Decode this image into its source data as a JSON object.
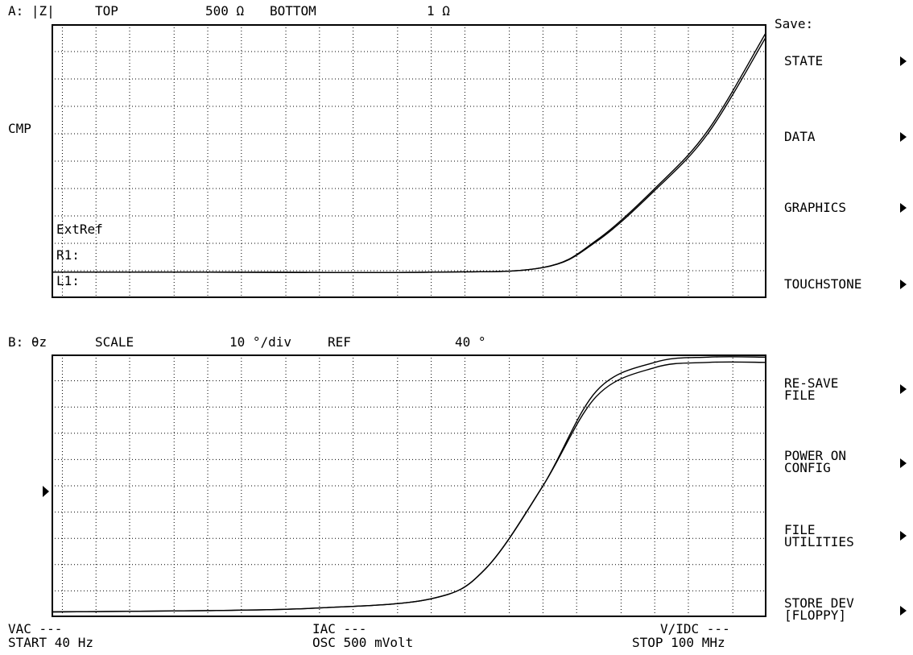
{
  "trace_a": {
    "label": "A: |Z|",
    "top_label": "TOP",
    "top_value": "500 Ω",
    "bottom_label": "BOTTOM",
    "bottom_value": "1 Ω",
    "cmp": "CMP",
    "ext_ref": "ExtRef",
    "r1": "R1:",
    "l1": "L1:"
  },
  "trace_b": {
    "label": "B: θz",
    "scale_label": "SCALE",
    "scale_value": "10 °/div",
    "ref_label": "REF",
    "ref_value": "40 °"
  },
  "footer": {
    "vac": "VAC ---",
    "start": "START 40 Hz",
    "iac": "IAC ---",
    "osc": "OSC 500 mVolt",
    "vidc": "V/IDC ---",
    "stop": "STOP 100 MHz"
  },
  "softkeys": {
    "title": "Save:",
    "items": [
      {
        "label": "STATE"
      },
      {
        "label": "DATA"
      },
      {
        "label": "GRAPHICS"
      },
      {
        "label": "TOUCHSTONE"
      },
      {
        "label": "RE-SAVE\nFILE"
      },
      {
        "label": "POWER ON\nCONFIG"
      },
      {
        "label": "FILE\nUTILITIES"
      },
      {
        "label": "STORE DEV\n[FLOPPY]"
      }
    ]
  },
  "icons": {
    "softkey_arrow": "right-triangle-icon",
    "reference_marker": "ref-marker-icon"
  },
  "chart_data": [
    {
      "type": "line",
      "title": "A: |Z|",
      "x_scale": "log",
      "x_start_hz": 40,
      "x_stop_hz": 100000000,
      "y_scale": "log",
      "ylim": [
        1,
        500
      ],
      "unit": "Ω",
      "grid": true,
      "series": [
        {
          "x": [
            40,
            1000,
            100000,
            1000000,
            3000000,
            10000000,
            30000000,
            100000000
          ],
          "y": [
            1.8,
            1.8,
            1.8,
            2.0,
            3.7,
            12,
            45,
            420
          ]
        },
        {
          "x": [
            40,
            1000,
            100000,
            1000000,
            3000000,
            10000000,
            30000000,
            100000000
          ],
          "y": [
            1.8,
            1.8,
            1.8,
            2.0,
            3.6,
            11.5,
            42,
            380
          ]
        }
      ]
    },
    {
      "type": "line",
      "title": "B: θz",
      "x_scale": "log",
      "x_start_hz": 40,
      "x_stop_hz": 100000000,
      "ylim": [
        -10,
        90
      ],
      "scale_per_div": 10,
      "reference": 40,
      "unit": "°",
      "grid": true,
      "series": [
        {
          "x": [
            40,
            1000,
            10000,
            100000,
            300000,
            1000000,
            3000000,
            10000000,
            30000000,
            100000000
          ],
          "y": [
            -8,
            -7.5,
            -6.5,
            -3,
            8,
            40,
            76,
            87,
            89,
            89
          ]
        },
        {
          "x": [
            40,
            1000,
            10000,
            100000,
            300000,
            1000000,
            3000000,
            10000000,
            30000000,
            100000000
          ],
          "y": [
            -8,
            -7.5,
            -6.5,
            -3,
            8,
            40,
            74,
            85,
            87,
            87
          ]
        }
      ]
    }
  ]
}
